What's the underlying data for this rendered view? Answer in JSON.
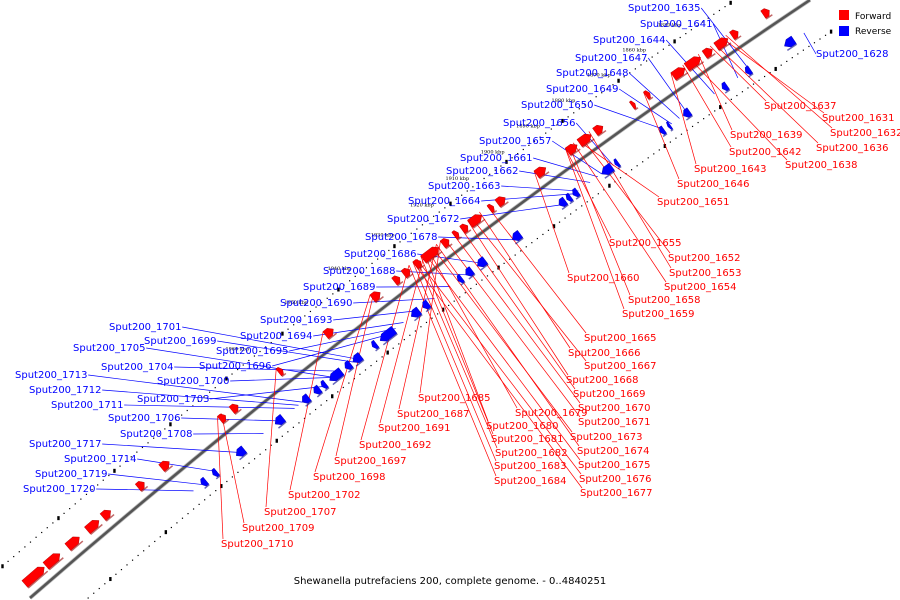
{
  "legend": {
    "forward_label": "Forward",
    "reverse_label": "Reverse",
    "forward_color": "#ff0000",
    "reverse_color": "#0000ff"
  },
  "caption": "Shewanella putrefaciens 200, complete genome. - 0..4840251",
  "kbp_marks": [
    "1850 kbp",
    "1860 kbp",
    "1870 kbp",
    "1880 kbp",
    "1890 kbp",
    "1900 kbp",
    "1910 kbp",
    "1920 kbp",
    "1930 kbp",
    "1940 kbp",
    "1950 kbp",
    "1960 kbp"
  ],
  "reverse_genes": [
    "Sput200_1628",
    "Sput200_1635",
    "Sput200_1641",
    "Sput200_1644",
    "Sput200_1647",
    "Sput200_1648",
    "Sput200_1649",
    "Sput200_1650",
    "Sput200_1656",
    "Sput200_1657",
    "Sput200_1661",
    "Sput200_1662",
    "Sput200_1663",
    "Sput200_1664",
    "Sput200_1672",
    "Sput200_1678",
    "Sput200_1686",
    "Sput200_1688",
    "Sput200_1689",
    "Sput200_1690",
    "Sput200_1693",
    "Sput200_1694",
    "Sput200_1695",
    "Sput200_1696",
    "Sput200_1701",
    "Sput200_1699",
    "Sput200_1705",
    "Sput200_1704",
    "Sput200_1700",
    "Sput200_1703",
    "Sput200_1713",
    "Sput200_1712",
    "Sput200_1711",
    "Sput200_1706",
    "Sput200_1708",
    "Sput200_1717",
    "Sput200_1714",
    "Sput200_1719",
    "Sput200_1720"
  ],
  "forward_genes": [
    "Sput200_1637",
    "Sput200_1631",
    "Sput200_1632",
    "Sput200_1639",
    "Sput200_1636",
    "Sput200_1642",
    "Sput200_1638",
    "Sput200_1643",
    "Sput200_1646",
    "Sput200_1651",
    "Sput200_1655",
    "Sput200_1652",
    "Sput200_1653",
    "Sput200_1660",
    "Sput200_1654",
    "Sput200_1658",
    "Sput200_1659",
    "Sput200_1665",
    "Sput200_1666",
    "Sput200_1667",
    "Sput200_1668",
    "Sput200_1669",
    "Sput200_1685",
    "Sput200_1670",
    "Sput200_1687",
    "Sput200_1679",
    "Sput200_1671",
    "Sput200_1691",
    "Sput200_1680",
    "Sput200_1673",
    "Sput200_1692",
    "Sput200_1681",
    "Sput200_1674",
    "Sput200_1682",
    "Sput200_1675",
    "Sput200_1697",
    "Sput200_1683",
    "Sput200_1676",
    "Sput200_1698",
    "Sput200_1684",
    "Sput200_1677",
    "Sput200_1702",
    "Sput200_1707",
    "Sput200_1709",
    "Sput200_1710"
  ]
}
